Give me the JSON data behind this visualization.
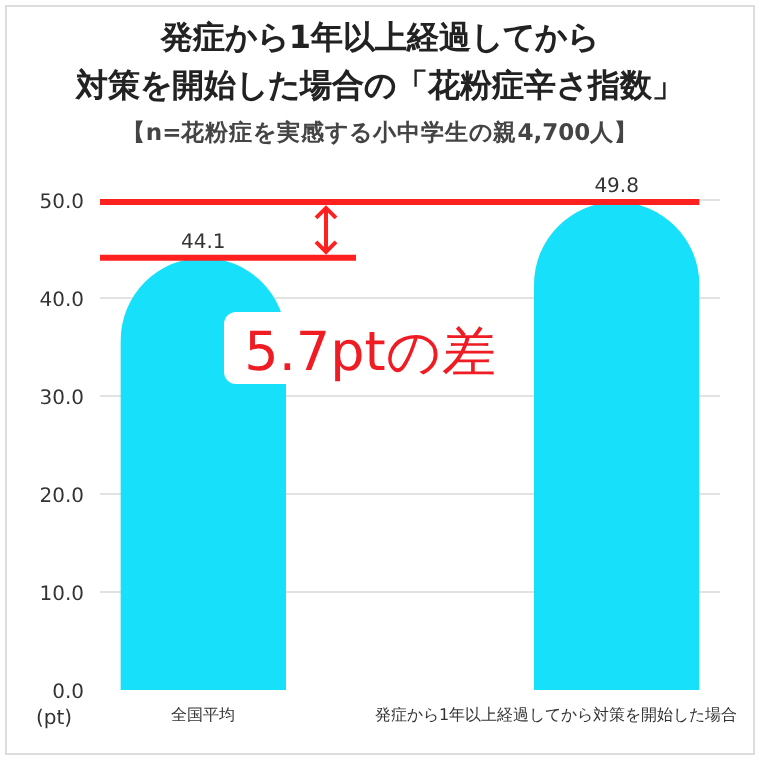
{
  "chart_data": {
    "type": "bar",
    "title": "発症から1年以上経過してから対策を開始した場合の「花粉症辛さ指数」",
    "subtitle": "【n=花粉症を実感する小中学生の親4,700人】",
    "ylabel": "(pt)",
    "categories": [
      "全国平均",
      "発症から1年以上経過してから対策を開始した場合"
    ],
    "values": [
      44.1,
      49.8
    ],
    "color": "#17e0fb",
    "data_labels": true,
    "ylim": [
      0,
      50
    ],
    "yticks": [
      {
        "value": 0,
        "label": "0.0"
      },
      {
        "value": 10,
        "label": "10.0"
      },
      {
        "value": 20,
        "label": "20.0"
      },
      {
        "value": 30,
        "label": "30.0"
      },
      {
        "value": 40,
        "label": "40.0"
      },
      {
        "value": 50,
        "label": "50.0"
      }
    ],
    "grid": "y",
    "ref_lines": [
      {
        "axis": "y",
        "value": 44.1,
        "color": "#ff2020"
      },
      {
        "axis": "y",
        "value": 49.8,
        "color": "#ff2020"
      }
    ],
    "annotations": [
      "5.7ptの差"
    ]
  }
}
